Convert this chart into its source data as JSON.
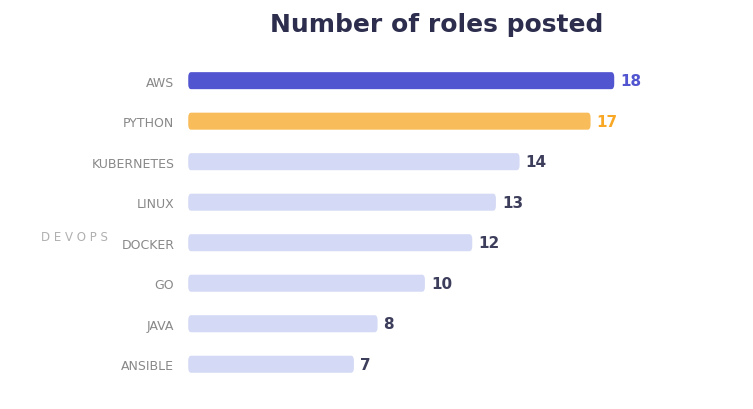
{
  "title": "Number of roles posted",
  "categories": [
    "AWS",
    "PYTHON",
    "KUBERNETES",
    "LINUX",
    "DOCKER",
    "GO",
    "JAVA",
    "ANSIBLE"
  ],
  "values": [
    18,
    17,
    14,
    13,
    12,
    10,
    8,
    7
  ],
  "bar_colors": [
    "#5255d0",
    "#f9bc5a",
    "#d4d9f5",
    "#d4d9f5",
    "#d4d9f5",
    "#d4d9f5",
    "#d4d9f5",
    "#d4d9f5"
  ],
  "value_colors": [
    "#5255d0",
    "#f9a825",
    "#3d3d5c",
    "#3d3d5c",
    "#3d3d5c",
    "#3d3d5c",
    "#3d3d5c",
    "#3d3d5c"
  ],
  "background_color": "#ffffff",
  "title_color": "#2d2d4e",
  "label_color": "#888888",
  "devops_label": "D E V O P S",
  "devops_color": "#b0b0b0",
  "xlim_max": 21,
  "bar_height": 0.42,
  "title_fontsize": 18,
  "label_fontsize": 9,
  "value_fontsize": 11
}
